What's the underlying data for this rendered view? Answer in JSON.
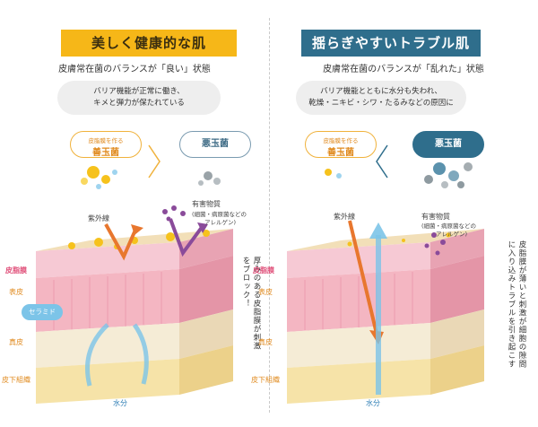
{
  "left": {
    "title": "美しく健康的な肌",
    "subtitle": "皮膚常在菌のバランスが「良い」状態",
    "desc_line1": "バリア機能が正常に働き、",
    "desc_line2": "キメと弾力が保たれている",
    "good_small": "皮脂膜を作る",
    "good_big": "善玉菌",
    "bad": "悪玉菌",
    "uv": "紫外線",
    "harmful": "有害物質",
    "harmful_sub1": "(細菌・病原菌などの",
    "harmful_sub2": "アレルゲン)",
    "layer_sebum": "皮脂膜",
    "layer_epidermis": "表皮",
    "layer_dermis": "真皮",
    "layer_subcutis": "皮下組織",
    "ceramide": "セラミド",
    "note": "厚みのある皮脂膜が刺激をブロック！",
    "water": "水分"
  },
  "right": {
    "title": "揺らぎやすいトラブル肌",
    "subtitle": "皮膚常在菌のバランスが「乱れた」状態",
    "desc_line1": "バリア機能とともに水分も失われ、",
    "desc_line2": "乾燥・ニキビ・シワ・たるみなどの原因に",
    "good_small": "皮脂膜を作る",
    "good_big": "善玉菌",
    "bad": "悪玉菌",
    "uv": "紫外線",
    "harmful": "有害物質",
    "harmful_sub1": "(細菌・病原菌などの",
    "harmful_sub2": "アレルゲン)",
    "layer_sebum": "皮脂膜",
    "layer_epidermis": "表皮",
    "layer_dermis": "真皮",
    "layer_subcutis": "皮下組織",
    "note": "皮脂膜が薄いと刺激が細胞の隙間に入り込みトラブルを引き起こす",
    "water": "水分"
  },
  "colors": {
    "yellow": "#f6b718",
    "navy": "#2f6e8c",
    "pink": "#e0507a",
    "skin_pink": "#f4b6c2",
    "arrow_orange": "#e8772e",
    "arrow_purple": "#8a4b9a",
    "water_blue": "#7cc4e8"
  }
}
